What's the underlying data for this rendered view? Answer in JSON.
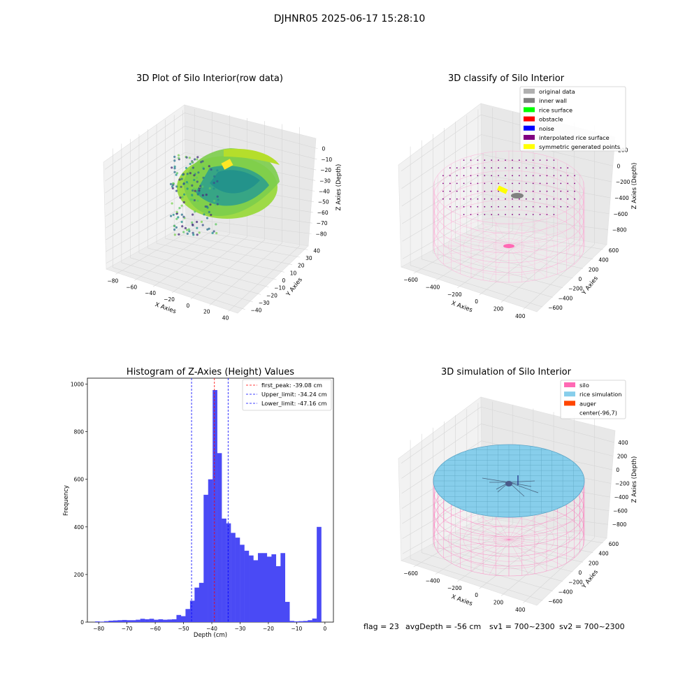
{
  "suptitle": "DJHNR05 2025-06-17 15:28:10",
  "footer": {
    "flag": "flag = 23",
    "avg": "avgDepth = -56 cm",
    "sv1": "sv1 = 700~2300",
    "sv2": "sv2 = 700~2300"
  },
  "colors": {
    "bar": "#4a4af5",
    "silo": "#ff69b4",
    "rice": "#87ceeb",
    "auger": "#ff4500",
    "first_peak_line": "#ff0000",
    "limit_line": "#0000ff"
  },
  "panel1": {
    "title": "3D Plot of Silo Interior(row data)",
    "x_label": "X Axies",
    "y_label": "Y Axies",
    "z_label": "Z Axies (Depth)",
    "x_ticks": [
      "−80",
      "−60",
      "−40",
      "−20",
      "0",
      "20",
      "40"
    ],
    "y_ticks": [
      "−40",
      "−30",
      "−20",
      "−10",
      "0",
      "10",
      "20",
      "30",
      "40"
    ],
    "z_ticks": [
      "0",
      "−10",
      "−20",
      "−30",
      "−40",
      "−50",
      "−60",
      "−70",
      "−80"
    ]
  },
  "panel2": {
    "title": "3D classify of Silo Interior",
    "x_label": "X Axies",
    "y_label": "Y Axies",
    "z_label": "Z Axies (Depth)",
    "x_ticks": [
      "−600",
      "−400",
      "−200",
      "0",
      "200",
      "400"
    ],
    "y_ticks": [
      "−600",
      "−400",
      "−200",
      "0",
      "200",
      "400",
      "600"
    ],
    "z_ticks": [
      "200",
      "0",
      "−200",
      "−400",
      "−600",
      "−800"
    ],
    "legend": [
      {
        "label": "original data",
        "color": "#b0b0b0"
      },
      {
        "label": "inner wall",
        "color": "#808080"
      },
      {
        "label": "rice surface",
        "color": "#00ff00"
      },
      {
        "label": "obstacle",
        "color": "#ff0000"
      },
      {
        "label": "noise",
        "color": "#0000ff"
      },
      {
        "label": "interpolated rice surface",
        "color": "#800080"
      },
      {
        "label": "symmetric generated points",
        "color": "#ffff00"
      }
    ]
  },
  "panel4": {
    "title": "3D simulation of Silo Interior",
    "x_label": "X Axies",
    "y_label": "Y Axies",
    "z_label": "Z Axies (Depth)",
    "x_ticks": [
      "−600",
      "−400",
      "−200",
      "0",
      "200",
      "400"
    ],
    "y_ticks": [
      "−600",
      "−400",
      "−200",
      "0",
      "200",
      "400",
      "600"
    ],
    "z_ticks": [
      "400",
      "200",
      "0",
      "−200",
      "−400",
      "−600",
      "−800"
    ],
    "legend": [
      {
        "label": "silo",
        "color": "#ff69b4"
      },
      {
        "label": "rice simulation",
        "color": "#87ceeb"
      },
      {
        "label": "auger",
        "color": "#ff4500"
      },
      {
        "label": "center(-96,7)",
        "color": ""
      }
    ]
  },
  "chart_data": {
    "type": "bar",
    "title": "Histogram of Z-Axies (Height) Values",
    "xlabel": "Depth (cm)",
    "ylabel": "Frequency",
    "xlim": [
      -84,
      3
    ],
    "ylim": [
      0,
      1025
    ],
    "x_ticks": [
      -80,
      -70,
      -60,
      -50,
      -40,
      -30,
      -20,
      -10,
      0
    ],
    "y_ticks": [
      0,
      200,
      400,
      600,
      800,
      1000
    ],
    "bin_width": 1.6,
    "bins_left": [
      -81.3,
      -79.7,
      -78.1,
      -76.5,
      -74.9,
      -73.3,
      -71.7,
      -70.1,
      -68.5,
      -66.9,
      -65.3,
      -63.7,
      -62.1,
      -60.5,
      -58.9,
      -57.3,
      -55.7,
      -54.1,
      -52.5,
      -50.9,
      -49.3,
      -47.7,
      -46.1,
      -44.5,
      -42.9,
      -41.3,
      -39.7,
      -38.1,
      -36.5,
      -34.9,
      -33.3,
      -31.7,
      -30.1,
      -28.5,
      -26.9,
      -25.3,
      -23.7,
      -22.1,
      -20.5,
      -18.9,
      -17.3,
      -15.7,
      -14.1,
      -12.5,
      -10.9,
      -9.3,
      -7.7,
      -6.1,
      -4.5,
      -2.9,
      -1.3
    ],
    "values": [
      3,
      2,
      4,
      6,
      7,
      8,
      9,
      8,
      8,
      10,
      14,
      12,
      14,
      10,
      12,
      10,
      11,
      12,
      30,
      25,
      55,
      90,
      145,
      165,
      535,
      600,
      975,
      710,
      435,
      415,
      375,
      355,
      325,
      300,
      280,
      260,
      290,
      290,
      275,
      285,
      235,
      290,
      85,
      5,
      3,
      4,
      5,
      8,
      15,
      400,
      0
    ],
    "series": [
      {
        "values_ref": "values"
      }
    ],
    "vlines": [
      {
        "label": "first_peak: -39.08 cm",
        "x": -39.08,
        "color": "#ff0000"
      },
      {
        "label": "Upper_limit: -34.24 cm",
        "x": -34.24,
        "color": "#0000ff"
      },
      {
        "label": "Lower_limit: -47.16 cm",
        "x": -47.16,
        "color": "#0000ff"
      }
    ],
    "legend_position": "upper right"
  }
}
